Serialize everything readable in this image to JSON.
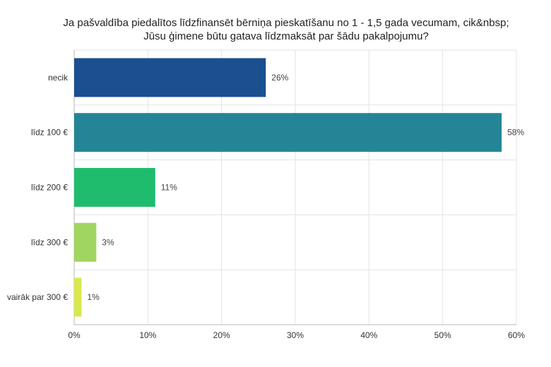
{
  "chart_data": {
    "type": "bar",
    "orientation": "horizontal",
    "title": "Ja pašvaldība piedalītos līdzfinansēt bērniņa pieskatīšanu no 1 - 1,5 gada vecumam, cik&nbsp; Jūsu ģimene būtu gatava līdzmaksāt par šādu pakalpojumu?",
    "title_lines": [
      "Ja pašvaldība piedalītos līdzfinansēt bērniņa pieskatīšanu no 1 - 1,5 gada vecumam, cik&nbsp;",
      "Jūsu ģimene būtu gatava līdzmaksāt par šādu pakalpojumu?"
    ],
    "categories": [
      "necik",
      "līdz 100 €",
      "līdz 200 €",
      "līdz 300 €",
      "vairāk par 300 €"
    ],
    "values": [
      26,
      58,
      11,
      3,
      1
    ],
    "value_labels": [
      "26%",
      "58%",
      "11%",
      "3%",
      "1%"
    ],
    "colors": [
      "#1a4f90",
      "#238596",
      "#20bc6e",
      "#a0d660",
      "#d9e84e"
    ],
    "xlim": [
      0,
      60
    ],
    "x_ticks": [
      0,
      10,
      20,
      30,
      40,
      50,
      60
    ],
    "x_tick_labels": [
      "0%",
      "10%",
      "20%",
      "30%",
      "40%",
      "50%",
      "60%"
    ],
    "xlabel": "",
    "ylabel": "",
    "grid": true,
    "legend": "none"
  }
}
